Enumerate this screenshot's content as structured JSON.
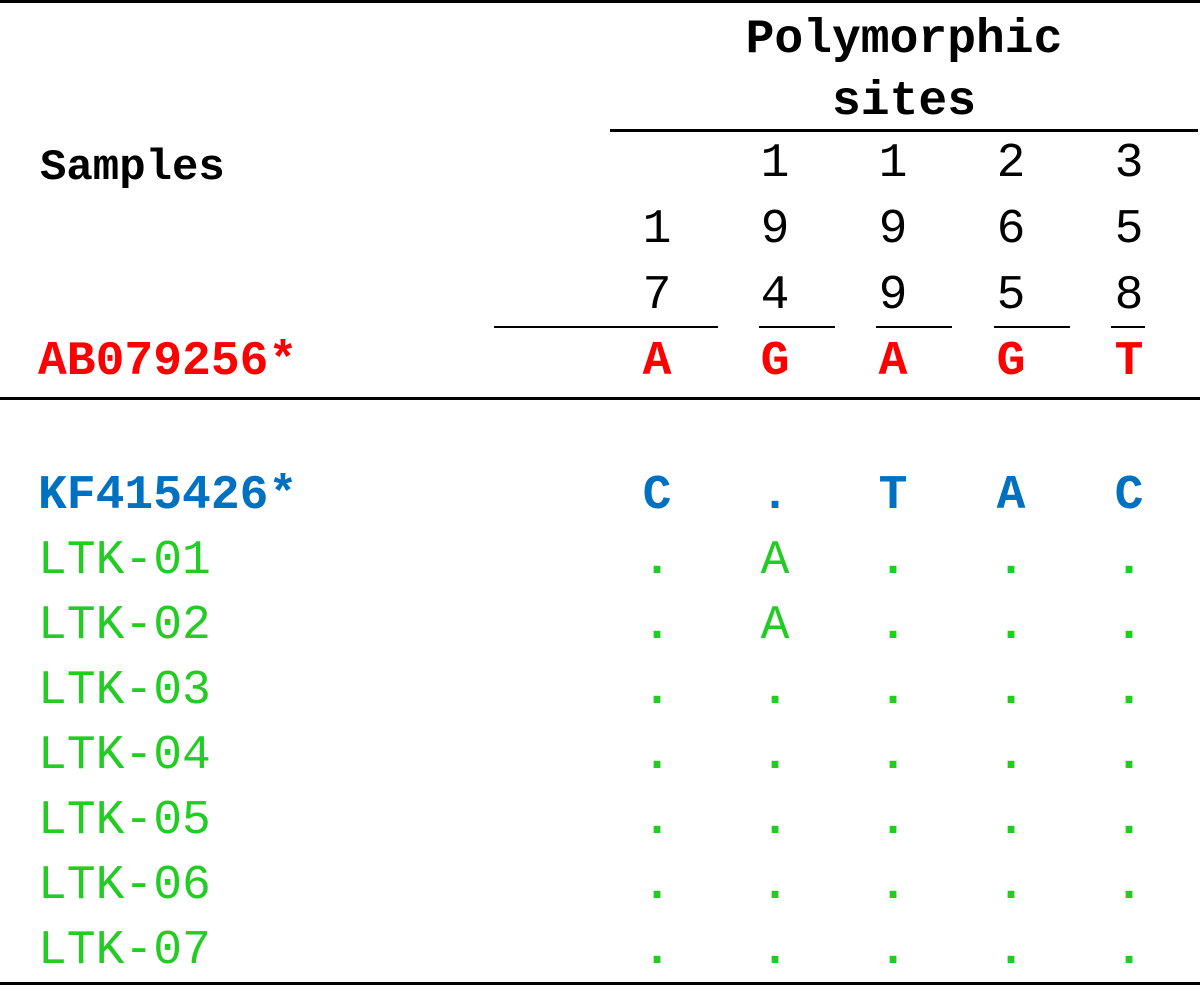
{
  "header": {
    "title_line1": "Polymorphic",
    "title_line2": "sites",
    "samples_label": "Samples"
  },
  "positions": [
    [
      "",
      "1",
      "7"
    ],
    [
      "1",
      "9",
      "4"
    ],
    [
      "1",
      "9",
      "9"
    ],
    [
      "2",
      "6",
      "5"
    ],
    [
      "3",
      "5",
      "8"
    ]
  ],
  "colors": {
    "reference": "#ff0000",
    "kf": "#0070c0",
    "ltk": "#22cc22"
  },
  "rows": [
    {
      "label": "AB079256*",
      "bases": [
        "A",
        "G",
        "A",
        "G",
        "T"
      ],
      "style": "reference"
    },
    {
      "label": "KF415426*",
      "bases": [
        "C",
        ".",
        "T",
        "A",
        "C"
      ],
      "style": "kf"
    },
    {
      "label": "LTK-01",
      "bases": [
        ".",
        "A",
        ".",
        ".",
        "."
      ],
      "style": "ltk"
    },
    {
      "label": "LTK-02",
      "bases": [
        ".",
        "A",
        ".",
        ".",
        "."
      ],
      "style": "ltk"
    },
    {
      "label": "LTK-03",
      "bases": [
        ".",
        ".",
        ".",
        ".",
        "."
      ],
      "style": "ltk"
    },
    {
      "label": "LTK-04",
      "bases": [
        ".",
        ".",
        ".",
        ".",
        "."
      ],
      "style": "ltk"
    },
    {
      "label": "LTK-05",
      "bases": [
        ".",
        ".",
        ".",
        ".",
        "."
      ],
      "style": "ltk"
    },
    {
      "label": "LTK-06",
      "bases": [
        ".",
        ".",
        ".",
        ".",
        "."
      ],
      "style": "ltk"
    },
    {
      "label": "LTK-07",
      "bases": [
        ".",
        ".",
        ".",
        ".",
        "."
      ],
      "style": "ltk"
    }
  ]
}
